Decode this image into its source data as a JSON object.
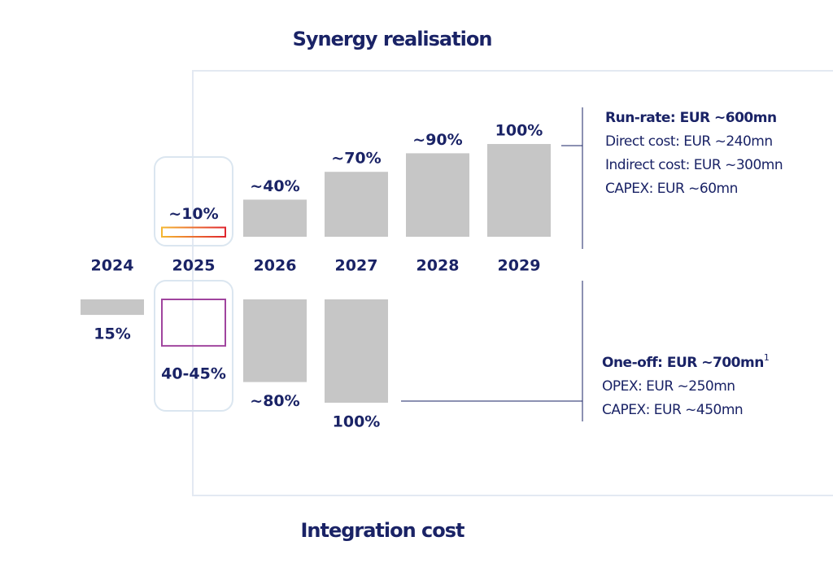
{
  "chart_data": [
    {
      "type": "bar",
      "title": "Synergy realisation",
      "categories": [
        "2024",
        "2025",
        "2026",
        "2027",
        "2028",
        "2029"
      ],
      "values": [
        null,
        10,
        40,
        70,
        90,
        100
      ],
      "value_labels": [
        null,
        "~10%",
        "~40%",
        "~70%",
        "~90%",
        "100%"
      ],
      "ylim": [
        0,
        100
      ],
      "color": "#c6c6c6",
      "highlight_color": "#e8452c",
      "summary": {
        "heading": "Run-rate: EUR ~600mn",
        "lines": [
          "Direct cost: EUR ~240mn",
          "Indirect cost: EUR ~300mn",
          "CAPEX: EUR ~60mn"
        ]
      }
    },
    {
      "type": "bar",
      "title": "Integration cost",
      "values": [
        15,
        45,
        80,
        100,
        null,
        null
      ],
      "value_labels": [
        "15%",
        "40-45%",
        "~80%",
        "100%",
        null,
        null
      ],
      "ylim": [
        0,
        100
      ],
      "color": "#c6c6c6",
      "highlight_color": "#a0449e",
      "summary": {
        "heading": "One-off: EUR ~700mn",
        "footnote_marker": "1",
        "lines": [
          "OPEX: EUR ~250mn",
          "CAPEX: EUR ~450mn"
        ]
      }
    }
  ]
}
